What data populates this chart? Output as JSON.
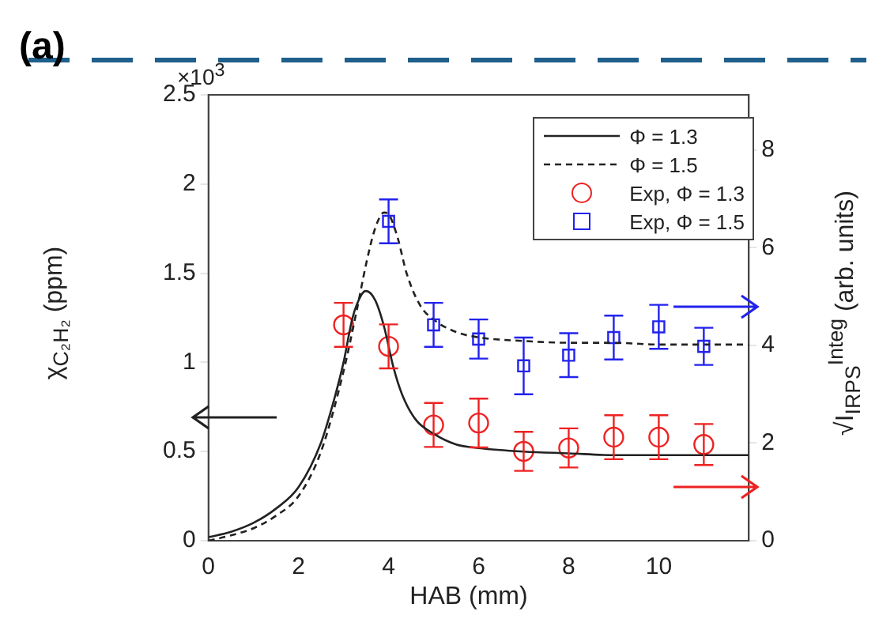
{
  "chart_data": {
    "type": "line",
    "xlabel": "HAB (mm)",
    "ylabel": "χ$_{C₂H₂}$ (ppm)",
    "y2label": "√I$_{IRPS}$$^{Integ}$ (arb. units)",
    "annotations": [
      "(a)",
      "×10$^{3}$"
    ],
    "xlim": [
      0,
      12
    ],
    "xticks": [
      0,
      2,
      4,
      6,
      8,
      10
    ],
    "ylim": [
      0,
      2.5
    ],
    "yticks": [
      0,
      0.5,
      1,
      1.5,
      2,
      2.5
    ],
    "y2lim": [
      0,
      9.13
    ],
    "y2ticks": [
      0,
      2,
      4,
      6,
      8
    ],
    "legend": "top right",
    "series": [
      {
        "name": "Φ = 1.3",
        "type": "line",
        "color": "#222222",
        "line_style": "solid",
        "marker": "none",
        "x": [
          0,
          0.5,
          1,
          1.5,
          2,
          2.5,
          2.8,
          3,
          3.2,
          3.4,
          3.5,
          3.7,
          3.9,
          4.1,
          4.3,
          4.6,
          5,
          5.5,
          6,
          7,
          8,
          9,
          10,
          11,
          12
        ],
        "values": [
          0.02,
          0.05,
          0.1,
          0.18,
          0.3,
          0.55,
          0.8,
          1.0,
          1.25,
          1.38,
          1.4,
          1.35,
          1.2,
          0.98,
          0.82,
          0.68,
          0.6,
          0.54,
          0.52,
          0.5,
          0.49,
          0.48,
          0.48,
          0.48,
          0.48
        ]
      },
      {
        "name": "Φ = 1.5",
        "type": "line",
        "color": "#222222",
        "line_style": "dashed",
        "marker": "none",
        "x": [
          0,
          0.5,
          1,
          1.5,
          2,
          2.5,
          3,
          3.3,
          3.5,
          3.7,
          3.9,
          4,
          4.2,
          4.4,
          4.7,
          5,
          5.5,
          6,
          7,
          8,
          9,
          10,
          11,
          12
        ],
        "values": [
          0,
          0.03,
          0.07,
          0.14,
          0.25,
          0.5,
          0.95,
          1.3,
          1.55,
          1.75,
          1.84,
          1.83,
          1.7,
          1.5,
          1.32,
          1.24,
          1.17,
          1.14,
          1.12,
          1.11,
          1.11,
          1.1,
          1.1,
          1.1
        ]
      },
      {
        "name": "Exp, Φ = 1.3",
        "type": "scatter",
        "axis": "y2",
        "color": "#ee2222",
        "marker": "circle",
        "x": [
          3,
          4,
          5,
          6,
          7,
          8,
          9,
          10,
          11
        ],
        "values": [
          4.42,
          3.98,
          2.37,
          2.41,
          1.83,
          1.9,
          2.12,
          2.12,
          1.97
        ],
        "errors": [
          0.45,
          0.45,
          0.45,
          0.5,
          0.4,
          0.4,
          0.45,
          0.45,
          0.42
        ]
      },
      {
        "name": "Exp, Φ = 1.5",
        "type": "scatter",
        "axis": "y2",
        "color": "#2222ee",
        "marker": "square",
        "x": [
          4,
          5,
          6,
          7,
          8,
          9,
          10,
          11
        ],
        "values": [
          6.54,
          4.42,
          4.13,
          3.58,
          3.8,
          4.16,
          4.38,
          3.98
        ],
        "errors": [
          0.45,
          0.45,
          0.4,
          0.58,
          0.45,
          0.45,
          0.45,
          0.38
        ]
      }
    ]
  }
}
